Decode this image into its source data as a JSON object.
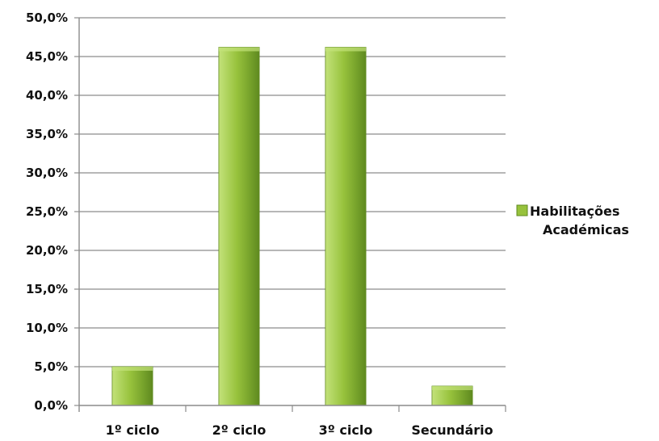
{
  "chart_data": {
    "type": "bar",
    "categories": [
      "1º ciclo",
      "2º ciclo",
      "3º ciclo",
      "Secundário"
    ],
    "series": [
      {
        "name": "Habilitações Académicas",
        "values": [
          5.0,
          46.2,
          46.2,
          2.5
        ]
      }
    ],
    "ylim": [
      0,
      50
    ],
    "ytick_step": 5,
    "ytick_labels": [
      "0,0%",
      "5,0%",
      "10,0%",
      "15,0%",
      "20,0%",
      "25,0%",
      "30,0%",
      "35,0%",
      "40,0%",
      "45,0%",
      "50,0%"
    ],
    "legend": {
      "position": "right",
      "lines": [
        "Habilitações",
        "Académicas"
      ]
    },
    "grid": true,
    "colors": {
      "bar_light": "#c3e27a",
      "bar_mid": "#97c23c",
      "bar_dark": "#5f8a1f",
      "grid": "#8c8c8c",
      "axis": "#8c8c8c"
    }
  }
}
